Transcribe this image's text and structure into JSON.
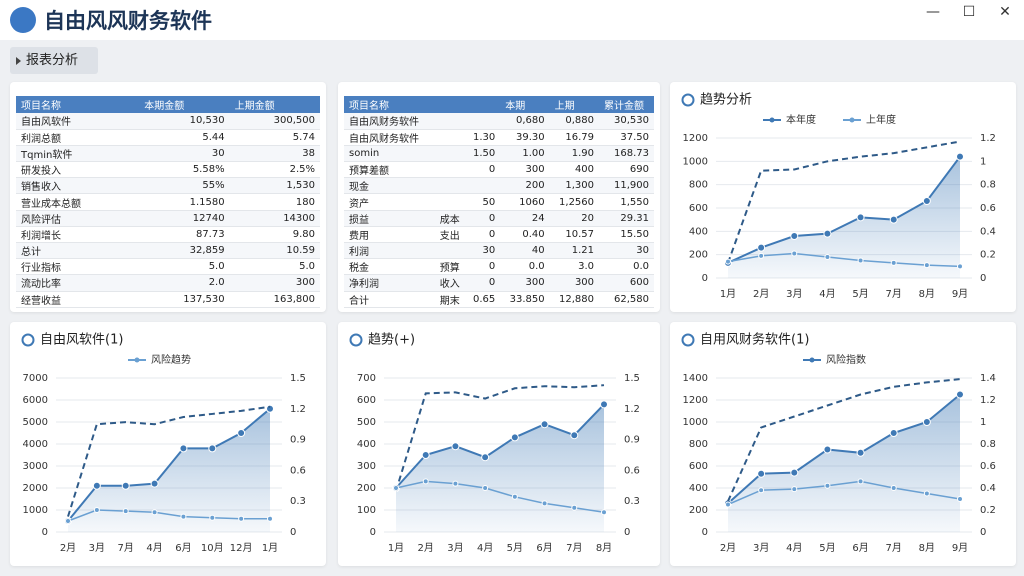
{
  "header": {
    "title": "自由风风财务软件"
  },
  "tab": {
    "label": "报表分析"
  },
  "tables": [
    {
      "columns": [
        "项目名称",
        "本期金额",
        "上期金额"
      ],
      "rows": [
        [
          "自由风软件",
          "10,530",
          "300,500"
        ],
        [
          "利润总额",
          "5.44",
          "5.74"
        ],
        [
          "Tqmin软件",
          "30",
          "38"
        ],
        [
          "研发投入",
          "5.58%",
          "2.5%"
        ],
        [
          "销售收入",
          "55%",
          "1,530"
        ],
        [
          "营业成本总额",
          "1.1580",
          "180"
        ],
        [
          "风险评估",
          "12740",
          "14300"
        ],
        [
          "利润增长",
          "87.73",
          "9.80"
        ],
        [
          "总计",
          "32,859",
          "10.59"
        ],
        [
          "行业指标",
          "5.0",
          "5.0"
        ],
        [
          "流动比率",
          "2.0",
          "300"
        ],
        [
          "经营收益",
          "137,530",
          "163,800"
        ]
      ]
    },
    {
      "columns": [
        "项目名称",
        "",
        "",
        "本期",
        "上期",
        "累计金额"
      ],
      "rows": [
        [
          "自由风财务软件",
          "",
          "",
          "0,680",
          "0,880",
          "30,530"
        ],
        [
          "自由风财务软件",
          "",
          "1.30",
          "39.30",
          "16.79",
          "37.50"
        ],
        [
          "somin",
          "",
          "1.50",
          "1.00",
          "1.90",
          "168.73"
        ],
        [
          "预算差额",
          "",
          "0",
          "300",
          "400",
          "690"
        ],
        [
          "现金",
          "",
          "",
          "200",
          "1,300",
          "11,900"
        ],
        [
          "资产",
          "",
          "50",
          "1060",
          "1,2560",
          "1,550"
        ],
        [
          "损益",
          "成本",
          "0",
          "24",
          "20",
          "29.31"
        ],
        [
          "费用",
          "支出",
          "0",
          "0.40",
          "10.57",
          "15.50"
        ],
        [
          "利润",
          "",
          "30",
          "40",
          "1.21",
          "30"
        ],
        [
          "税金",
          "预算",
          "0",
          "0.0",
          "3.0",
          "0.0"
        ],
        [
          "净利润",
          "收入",
          "0",
          "300",
          "300",
          "600"
        ],
        [
          "合计",
          "期末",
          "0.65",
          "33.850",
          "12,880",
          "62,580"
        ]
      ]
    }
  ],
  "chart_data": [
    {
      "type": "line",
      "title": "趋势分析",
      "x": [
        "1月",
        "2月",
        "3月",
        "4月",
        "5月",
        "7月",
        "8月",
        "9月"
      ],
      "ylim": [
        0,
        1200
      ],
      "yticks": [
        0,
        200,
        400,
        600,
        800,
        1000,
        1200
      ],
      "y2lim": [
        0,
        1.2
      ],
      "y2ticks": [
        0,
        0.2,
        0.4,
        0.6,
        0.8,
        1.0,
        1.2
      ],
      "grid": true,
      "series": [
        {
          "name": "本年度",
          "style": "area",
          "color": "#3f79b5",
          "values": [
            130,
            260,
            360,
            380,
            520,
            500,
            660,
            1040
          ]
        },
        {
          "style": "dashed",
          "axis": "y2",
          "color": "#2e5a88",
          "values": [
            0.13,
            0.92,
            0.93,
            1.0,
            1.04,
            1.07,
            1.12,
            1.17
          ]
        },
        {
          "name": "上年度",
          "style": "line",
          "color": "#6aa0d2",
          "values": [
            140,
            190,
            210,
            180,
            150,
            130,
            110,
            100
          ]
        }
      ]
    },
    {
      "type": "line",
      "title": "自由风软件(1)",
      "x": [
        "2月",
        "3月",
        "7月",
        "4月",
        "6月",
        "10月",
        "12月",
        "1月"
      ],
      "ylim": [
        0,
        7000
      ],
      "yticks": [
        0,
        1000,
        2000,
        3000,
        4000,
        5000,
        6000,
        7000
      ],
      "y2lim": [
        0,
        1.5
      ],
      "y2ticks": [
        0,
        0.3,
        0.6,
        0.9,
        1.2,
        1.5
      ],
      "grid": true,
      "series": [
        {
          "style": "area",
          "color": "#3f79b5",
          "values": [
            500,
            2100,
            2100,
            2200,
            3800,
            3800,
            4500,
            5600
          ]
        },
        {
          "style": "dashed",
          "axis": "y2",
          "color": "#2e5a88",
          "values": [
            0.15,
            1.05,
            1.07,
            1.05,
            1.12,
            1.15,
            1.18,
            1.22
          ]
        },
        {
          "name": "风险趋势",
          "style": "line",
          "color": "#6aa0d2",
          "values": [
            500,
            1000,
            950,
            900,
            700,
            650,
            600,
            600
          ]
        }
      ]
    },
    {
      "type": "line",
      "title": "趋势(+)",
      "x": [
        "1月",
        "2月",
        "3月",
        "4月",
        "5月",
        "6月",
        "7月",
        "8月"
      ],
      "ylim": [
        0,
        700
      ],
      "yticks": [
        0,
        100,
        200,
        300,
        400,
        500,
        600,
        700
      ],
      "y2lim": [
        0,
        1.5
      ],
      "y2ticks": [
        0,
        0.3,
        0.6,
        0.9,
        1.2,
        1.5
      ],
      "grid": true,
      "series": [
        {
          "style": "area",
          "color": "#3f79b5",
          "values": [
            200,
            350,
            390,
            340,
            430,
            490,
            440,
            580
          ]
        },
        {
          "style": "dashed",
          "axis": "y2",
          "color": "#2e5a88",
          "values": [
            0.4,
            1.35,
            1.36,
            1.3,
            1.4,
            1.42,
            1.41,
            1.43
          ]
        },
        {
          "style": "line",
          "color": "#6aa0d2",
          "values": [
            200,
            230,
            220,
            200,
            160,
            130,
            110,
            90
          ]
        }
      ]
    },
    {
      "type": "line",
      "title": "自用风财务软件(1)",
      "x": [
        "2月",
        "3月",
        "4月",
        "5月",
        "6月",
        "7月",
        "8月",
        "9月"
      ],
      "ylim": [
        0,
        1400
      ],
      "yticks": [
        0,
        200,
        400,
        600,
        800,
        1000,
        1200,
        1400
      ],
      "y2lim": [
        0,
        1.4
      ],
      "y2ticks": [
        0,
        0.2,
        0.4,
        0.6,
        0.8,
        1.0,
        1.2,
        1.4
      ],
      "grid": true,
      "series": [
        {
          "name": "风险指数",
          "style": "area",
          "color": "#3f79b5",
          "values": [
            260,
            530,
            540,
            750,
            720,
            900,
            1000,
            1250
          ]
        },
        {
          "style": "dashed",
          "axis": "y2",
          "color": "#2e5a88",
          "values": [
            0.28,
            0.95,
            1.05,
            1.15,
            1.25,
            1.32,
            1.36,
            1.39
          ]
        },
        {
          "style": "line",
          "color": "#6aa0d2",
          "values": [
            250,
            380,
            390,
            420,
            460,
            400,
            350,
            300
          ]
        }
      ]
    }
  ]
}
